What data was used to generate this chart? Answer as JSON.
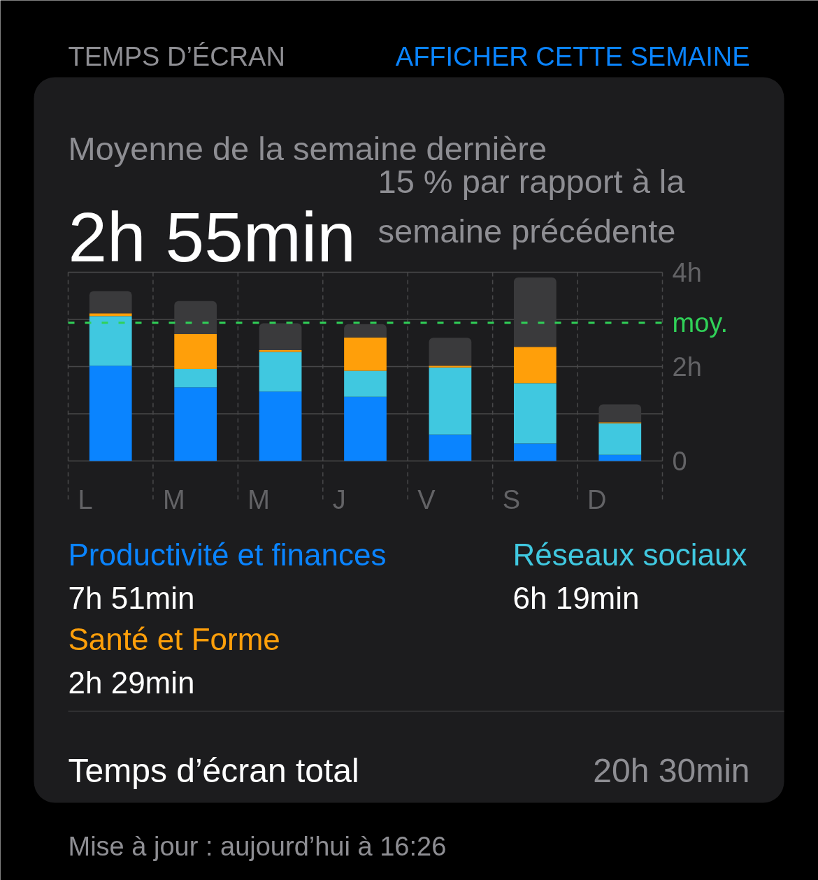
{
  "chart_data": {
    "type": "bar",
    "title": "Moyenne de la semaine dernière",
    "subtitle": "2h 55min",
    "categories": [
      "L",
      "M",
      "M",
      "J",
      "V",
      "S",
      "D"
    ],
    "stacked": true,
    "series": [
      {
        "name": "Productivité et finances",
        "color": "#0a84ff",
        "values": [
          2.02,
          1.56,
          1.47,
          1.36,
          0.56,
          0.37,
          0.13
        ]
      },
      {
        "name": "Réseaux sociaux",
        "color": "#40c8e0",
        "values": [
          1.05,
          0.39,
          0.84,
          0.55,
          1.42,
          1.28,
          0.67
        ]
      },
      {
        "name": "Santé et Forme",
        "color": "#ff9f0a",
        "values": [
          0.06,
          0.74,
          0.04,
          0.71,
          0.04,
          0.77,
          0.02
        ]
      },
      {
        "color": "#3a3a3c",
        "values": [
          0.47,
          0.7,
          0.57,
          0.28,
          0.59,
          1.47,
          0.38
        ]
      }
    ],
    "ylim": [
      0,
      4
    ],
    "yticks": [
      0,
      {
        "value": 1,
        "label": null
      },
      {
        "value": 2,
        "label": "2h"
      },
      {
        "value": 3,
        "label": null
      },
      {
        "value": 4,
        "label": "4h"
      }
    ],
    "grid": true,
    "legend": "bottom",
    "ref_lines": [
      {
        "axis": "y",
        "value": 2.93,
        "label": "moy.",
        "color": "#30d158",
        "line_style": "dashed"
      }
    ],
    "annotations": [
      "TEMPS D’ÉCRAN",
      "AFFICHER CETTE SEMAINE",
      "15 % par rapport à la semaine précédente",
      "7h 51min",
      "6h 19min",
      "2h 29min",
      "Temps d’écran total",
      "20h 30min",
      "Mise à jour : aujourd’hui à 16:26"
    ]
  }
}
